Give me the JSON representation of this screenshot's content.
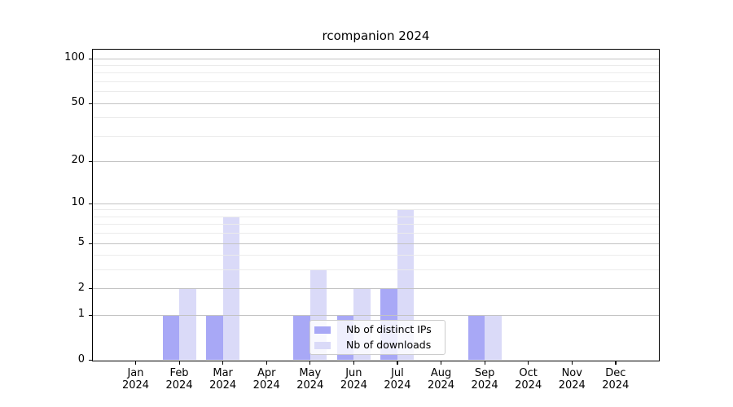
{
  "chart_data": {
    "type": "bar",
    "title": "rcompanion 2024",
    "categories": [
      "Jan",
      "Feb",
      "Mar",
      "Apr",
      "May",
      "Jun",
      "Jul",
      "Aug",
      "Sep",
      "Oct",
      "Nov",
      "Dec"
    ],
    "x_tick_second_line": "2024",
    "series": [
      {
        "name": "Nb of distinct IPs",
        "color": "#a8a8f6",
        "values": [
          0,
          1,
          1,
          0,
          1,
          1,
          2,
          0,
          1,
          0,
          0,
          0
        ]
      },
      {
        "name": "Nb of downloads",
        "color": "#dadaf8",
        "values": [
          0,
          2,
          8,
          0,
          3,
          2,
          9,
          0,
          1,
          0,
          0,
          0
        ]
      }
    ],
    "y_axis": {
      "scale": "log1p",
      "ticks": [
        0,
        1,
        2,
        5,
        10,
        20,
        50,
        100
      ],
      "minor_gridlines": [
        3,
        4,
        6,
        7,
        8,
        9,
        30,
        40,
        60,
        70,
        80,
        90
      ],
      "ylim": [
        0,
        113
      ]
    },
    "legend": {
      "location": "lower center",
      "entries": [
        "Nb of distinct IPs",
        "Nb of downloads"
      ]
    },
    "grid": true
  },
  "colors": {
    "major_grid": "#c3c3c3",
    "minor_grid": "#ebebeb",
    "spine": "#000000",
    "legend_border": "#cccccc"
  }
}
